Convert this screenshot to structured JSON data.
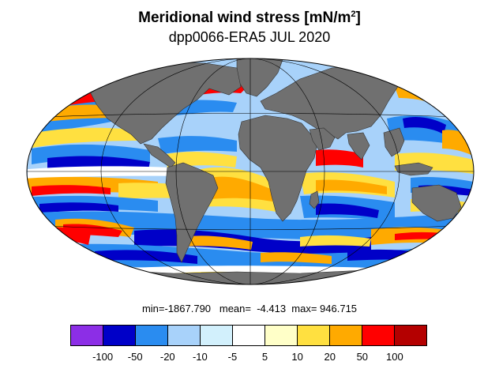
{
  "title": {
    "main": "Meridional wind stress [mN/m",
    "sup": "2",
    "close": "]"
  },
  "subtitle": "dpp0066-ERA5 JUL 2020",
  "stats": {
    "text": "min=-1867.790   mean=  -4.413  max= 946.715"
  },
  "colorbar": {
    "colors": [
      "#8c2ee6",
      "#0000c8",
      "#2a8cf0",
      "#a8d2fa",
      "#d2f0fc",
      "#ffffff",
      "#ffffc8",
      "#ffe040",
      "#ffaa00",
      "#ff0000",
      "#b40000"
    ],
    "labels": [
      "-100",
      "-50",
      "-20",
      "-10",
      "-5",
      "5",
      "10",
      "20",
      "50",
      "100"
    ]
  },
  "map": {
    "projection": "mollweide",
    "land_color": "#707070",
    "ocean_colors": {
      "neg_strong": "#0000c8",
      "neg": "#2a8cf0",
      "neg_weak": "#a8d2fa",
      "pos_weak": "#ffe040",
      "pos": "#ffaa00",
      "pos_strong": "#ff0000"
    }
  }
}
